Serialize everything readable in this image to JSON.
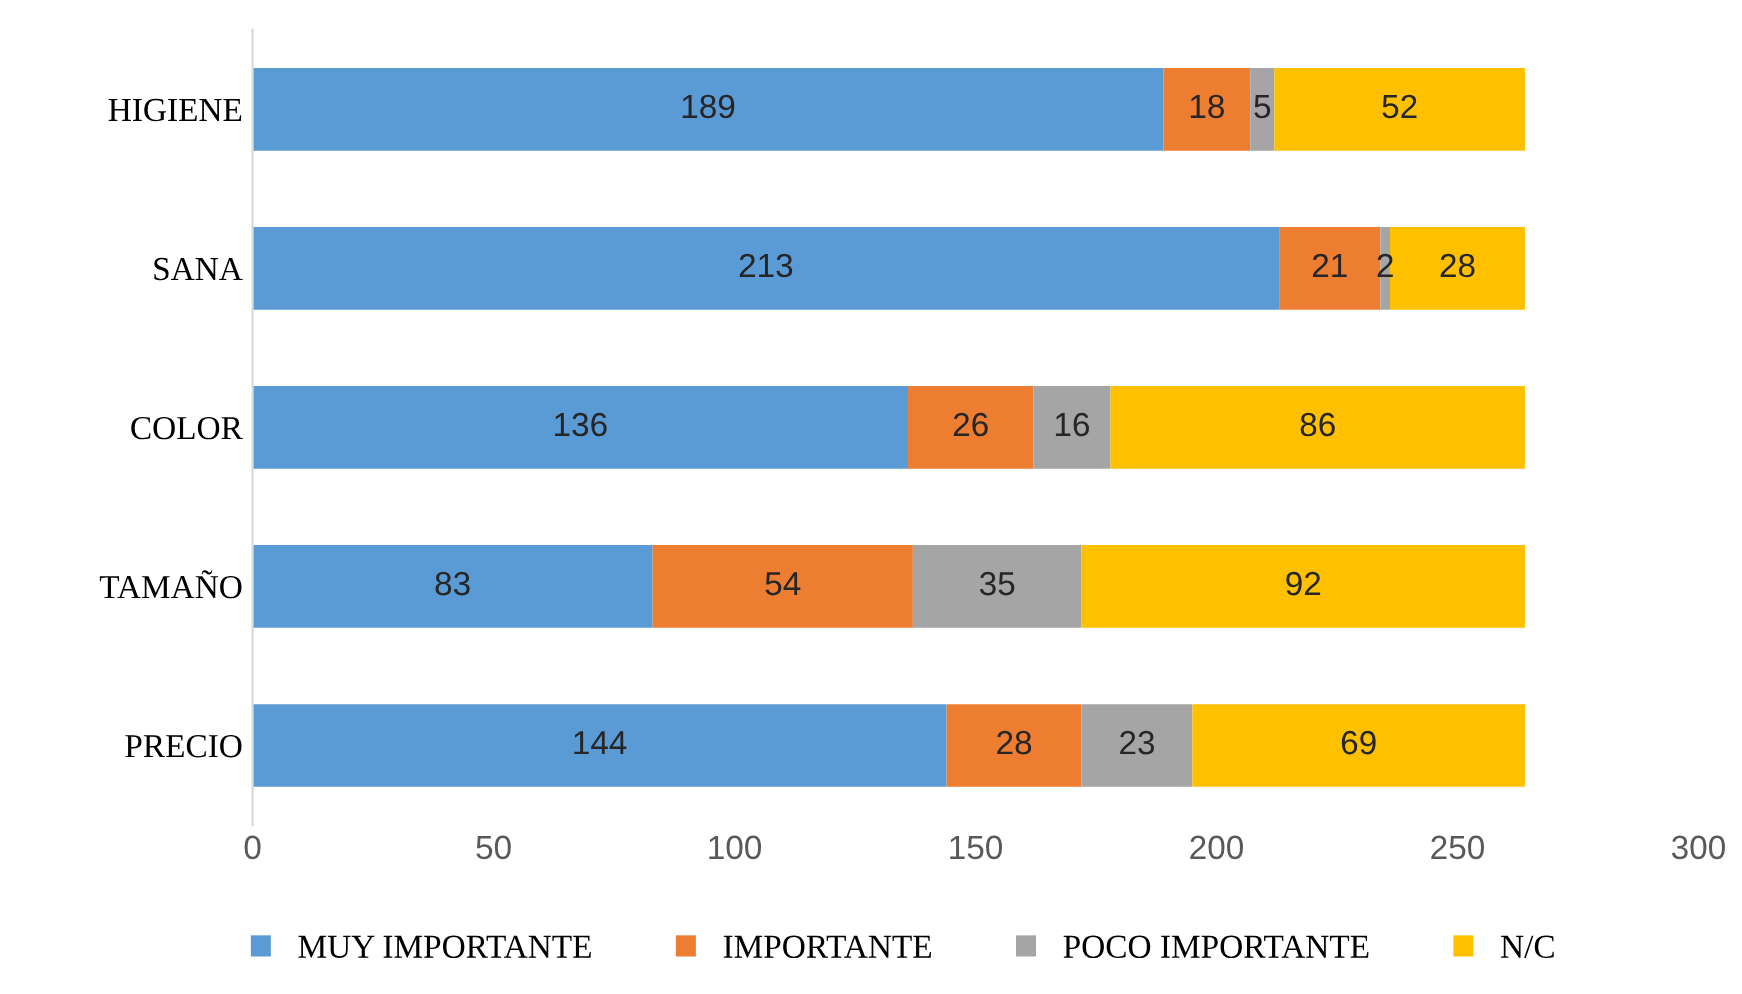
{
  "chart_data": {
    "type": "bar",
    "orientation": "horizontal",
    "stacked": true,
    "data_labels": true,
    "legend": "bottom",
    "grid": false,
    "categories": [
      "HIGIENE",
      "SANA",
      "COLOR",
      "TAMAÑO",
      "PRECIO"
    ],
    "series": [
      {
        "name": "MUY IMPORTANTE",
        "color": "#5b9bd5",
        "values": [
          189,
          213,
          136,
          83,
          144
        ]
      },
      {
        "name": "IMPORTANTE",
        "color": "#ed7d31",
        "values": [
          18,
          21,
          26,
          54,
          28
        ]
      },
      {
        "name": "POCO IMPORTANTE",
        "color": "#a5a5a5",
        "values": [
          5,
          2,
          16,
          35,
          23
        ]
      },
      {
        "name": "N/C",
        "color": "#ffc000",
        "values": [
          52,
          28,
          86,
          92,
          69
        ]
      }
    ],
    "xlim": [
      0,
      300
    ],
    "xticks": [
      0,
      50,
      100,
      150,
      200,
      250,
      300
    ]
  }
}
